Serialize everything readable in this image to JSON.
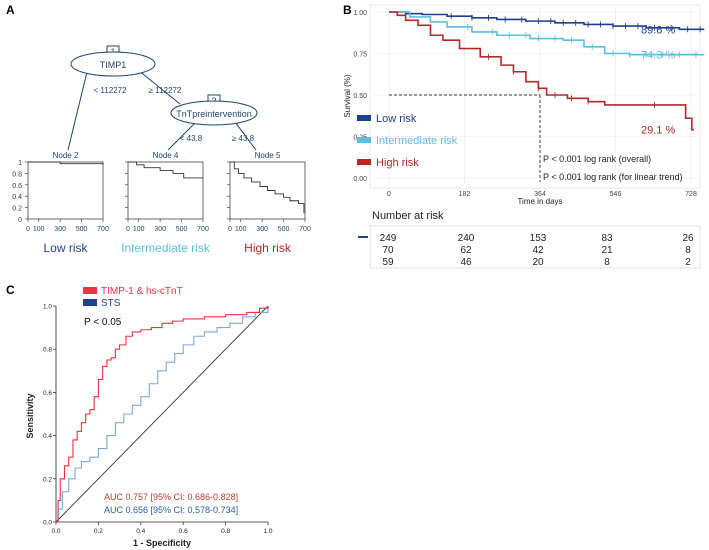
{
  "colors": {
    "low": "#1f3f8f",
    "intermediate": "#5bbde0",
    "high": "#b5282a",
    "tree_text": "#1c4470",
    "roc_red": "#ee3040",
    "roc_blue": "#1f3f8f",
    "roc_blue_light": "#7fa7dd",
    "auc_red": "#c0392b",
    "auc_blue": "#2e5aa8"
  },
  "panel_a": {
    "label": "A",
    "tree": {
      "root": {
        "id": "1",
        "variable": "TIMP1"
      },
      "split_root_left": "< 112272",
      "split_root_right": "≥ 112272",
      "inner": {
        "id": "3",
        "variable": "TnTpreintervention"
      },
      "split_inner_left": "< 43.8",
      "split_inner_right": "≥ 43.8",
      "leaves": [
        {
          "name": "Node 2",
          "group": "Low risk",
          "color_key": "low",
          "curve": [
            [
              0,
              1.0
            ],
            [
              300,
              0.97
            ],
            [
              700,
              0.95
            ]
          ]
        },
        {
          "name": "Node 4",
          "group": "Intermediate risk",
          "color_key": "intermediate",
          "curve": [
            [
              0,
              1.0
            ],
            [
              80,
              0.95
            ],
            [
              150,
              0.9
            ],
            [
              300,
              0.85
            ],
            [
              420,
              0.8
            ],
            [
              520,
              0.72
            ],
            [
              700,
              0.72
            ]
          ]
        },
        {
          "name": "Node 5",
          "group": "High risk",
          "color_key": "high",
          "curve": [
            [
              0,
              1.0
            ],
            [
              40,
              0.88
            ],
            [
              80,
              0.8
            ],
            [
              130,
              0.72
            ],
            [
              200,
              0.65
            ],
            [
              280,
              0.57
            ],
            [
              350,
              0.5
            ],
            [
              420,
              0.44
            ],
            [
              500,
              0.38
            ],
            [
              560,
              0.32
            ],
            [
              640,
              0.27
            ],
            [
              690,
              0.1
            ]
          ]
        }
      ],
      "y_ticks": [
        "0",
        "0.2",
        "0.4",
        "0.6",
        "0.8",
        "1"
      ],
      "x_ticks": [
        "0",
        "100",
        "300",
        "500",
        "700"
      ]
    }
  },
  "chart_data": [
    {
      "panel": "B",
      "type": "line",
      "title": "",
      "xlabel": "Time in days",
      "ylabel": "Survival (%)",
      "xlim": [
        0,
        800
      ],
      "ylim": [
        0,
        1
      ],
      "x_ticks": [
        "0",
        "182",
        "364",
        "546",
        "728"
      ],
      "y_ticks": [
        "0.00",
        "0.25",
        "0.50",
        "0.75",
        "1.00"
      ],
      "series": [
        {
          "name": "Low risk",
          "color_key": "low",
          "end_label": "89.6 %",
          "points": [
            [
              0,
              1.0
            ],
            [
              40,
              0.99
            ],
            [
              80,
              0.985
            ],
            [
              140,
              0.975
            ],
            [
              200,
              0.965
            ],
            [
              260,
              0.955
            ],
            [
              330,
              0.945
            ],
            [
              400,
              0.935
            ],
            [
              470,
              0.925
            ],
            [
              540,
              0.915
            ],
            [
              620,
              0.905
            ],
            [
              700,
              0.896
            ],
            [
              760,
              0.896
            ]
          ],
          "censors": [
            150,
            200,
            240,
            280,
            320,
            360,
            390,
            420,
            450,
            480,
            510,
            540,
            570,
            600,
            640,
            680,
            720,
            750
          ]
        },
        {
          "name": "Intermediate risk",
          "color_key": "intermediate",
          "end_label": "74.3 %",
          "points": [
            [
              0,
              1.0
            ],
            [
              50,
              0.97
            ],
            [
              100,
              0.94
            ],
            [
              140,
              0.91
            ],
            [
              200,
              0.88
            ],
            [
              260,
              0.86
            ],
            [
              340,
              0.84
            ],
            [
              420,
              0.83
            ],
            [
              470,
              0.79
            ],
            [
              520,
              0.75
            ],
            [
              580,
              0.743
            ],
            [
              760,
              0.743
            ]
          ],
          "censors": [
            190,
            250,
            290,
            330,
            360,
            400,
            440,
            490,
            540,
            580,
            620,
            660,
            700,
            740
          ]
        },
        {
          "name": "High risk",
          "color_key": "high",
          "end_label": "29.1 %",
          "points": [
            [
              0,
              1.0
            ],
            [
              20,
              0.98
            ],
            [
              40,
              0.95
            ],
            [
              70,
              0.92
            ],
            [
              100,
              0.86
            ],
            [
              130,
              0.83
            ],
            [
              170,
              0.78
            ],
            [
              220,
              0.73
            ],
            [
              270,
              0.68
            ],
            [
              300,
              0.64
            ],
            [
              330,
              0.58
            ],
            [
              360,
              0.54
            ],
            [
              380,
              0.5
            ],
            [
              430,
              0.48
            ],
            [
              480,
              0.46
            ],
            [
              520,
              0.44
            ],
            [
              600,
              0.44
            ],
            [
              700,
              0.44
            ],
            [
              715,
              0.36
            ],
            [
              730,
              0.291
            ],
            [
              735,
              0.291
            ]
          ],
          "censors": [
            240,
            300,
            360,
            400,
            440,
            480,
            640
          ]
        }
      ],
      "median_line": {
        "x": 364,
        "y": 0.5
      },
      "stats": [
        "P < 0.001 log rank (overall)",
        "P < 0.001 log rank (for linear trend)"
      ],
      "risk_table": {
        "title": "Number at risk",
        "rows": [
          {
            "color_key": "low",
            "values": [
              "249",
              "240",
              "153",
              "83",
              "26"
            ]
          },
          {
            "color_key": "intermediate",
            "values": [
              "70",
              "62",
              "42",
              "21",
              "8"
            ]
          },
          {
            "color_key": "high",
            "values": [
              "59",
              "46",
              "20",
              "8",
              "2"
            ]
          }
        ]
      }
    },
    {
      "panel": "C",
      "type": "line",
      "title": "",
      "xlabel": "1 - Specificity",
      "ylabel": "Sensitivity",
      "xlim": [
        0,
        1
      ],
      "ylim": [
        0,
        1
      ],
      "x_ticks": [
        "0.0",
        "0.2",
        "0.4",
        "0.6",
        "0.8",
        "1.0"
      ],
      "y_ticks": [
        "0.0",
        "0.2",
        "0.4",
        "0.6",
        "0.8",
        "1.0"
      ],
      "legend": [
        {
          "label": "TIMP-1 & hs-cTnT",
          "color_key": "roc_red"
        },
        {
          "label": "STS",
          "color_key": "roc_blue"
        }
      ],
      "p_value": "P < 0.05",
      "series": [
        {
          "name": "TIMP-1 & hs-cTnT",
          "color_key": "roc_red",
          "auc": 0.757,
          "points": [
            [
              0,
              0
            ],
            [
              0.01,
              0.1
            ],
            [
              0.02,
              0.2
            ],
            [
              0.04,
              0.26
            ],
            [
              0.06,
              0.3
            ],
            [
              0.08,
              0.38
            ],
            [
              0.1,
              0.42
            ],
            [
              0.12,
              0.46
            ],
            [
              0.14,
              0.5
            ],
            [
              0.16,
              0.52
            ],
            [
              0.18,
              0.58
            ],
            [
              0.2,
              0.66
            ],
            [
              0.22,
              0.72
            ],
            [
              0.24,
              0.75
            ],
            [
              0.26,
              0.76
            ],
            [
              0.28,
              0.8
            ],
            [
              0.3,
              0.82
            ],
            [
              0.33,
              0.86
            ],
            [
              0.36,
              0.88
            ],
            [
              0.4,
              0.89
            ],
            [
              0.45,
              0.9
            ],
            [
              0.5,
              0.92
            ],
            [
              0.55,
              0.93
            ],
            [
              0.6,
              0.94
            ],
            [
              0.7,
              0.95
            ],
            [
              0.8,
              0.96
            ],
            [
              0.9,
              0.97
            ],
            [
              0.96,
              0.99
            ],
            [
              1,
              1
            ]
          ]
        },
        {
          "name": "STS",
          "color_key": "roc_blue_light",
          "auc": 0.656,
          "points": [
            [
              0,
              0
            ],
            [
              0.01,
              0.06
            ],
            [
              0.03,
              0.14
            ],
            [
              0.06,
              0.2
            ],
            [
              0.09,
              0.25
            ],
            [
              0.12,
              0.28
            ],
            [
              0.16,
              0.3
            ],
            [
              0.2,
              0.34
            ],
            [
              0.24,
              0.4
            ],
            [
              0.28,
              0.46
            ],
            [
              0.32,
              0.5
            ],
            [
              0.36,
              0.54
            ],
            [
              0.4,
              0.58
            ],
            [
              0.44,
              0.64
            ],
            [
              0.48,
              0.7
            ],
            [
              0.52,
              0.74
            ],
            [
              0.56,
              0.78
            ],
            [
              0.6,
              0.82
            ],
            [
              0.65,
              0.86
            ],
            [
              0.7,
              0.88
            ],
            [
              0.76,
              0.9
            ],
            [
              0.82,
              0.92
            ],
            [
              0.88,
              0.95
            ],
            [
              0.94,
              0.97
            ],
            [
              1,
              1
            ]
          ]
        }
      ],
      "auc_lines": [
        {
          "text": "AUC 0.757 [95% CI: 0.686-0.828]",
          "color_key": "auc_red"
        },
        {
          "text": "AUC 0.656 [95% CI: 0.578-0.734]",
          "color_key": "auc_blue"
        }
      ]
    }
  ],
  "panel_labels": {
    "b": "B",
    "c": "C"
  }
}
